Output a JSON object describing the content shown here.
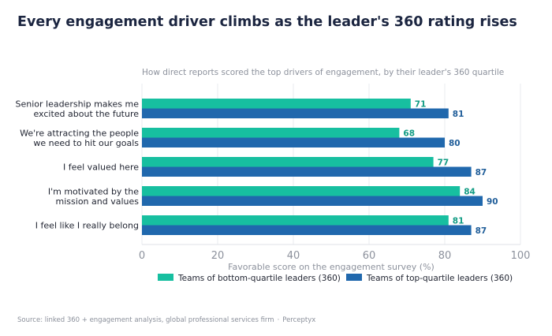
{
  "chart_data": {
    "type": "bar",
    "orientation": "horizontal",
    "title": "Every engagement driver climbs as the leader's 360 rating rises",
    "subtitle": "How direct reports scored the top drivers of engagement, by their leader's 360 quartile",
    "xlabel": "Favorable score on the engagement survey (%)",
    "ylabel": "",
    "xlim": [
      0,
      100
    ],
    "xticks": [
      0,
      20,
      40,
      60,
      80,
      100
    ],
    "grid": true,
    "legend_position": "bottom",
    "categories": [
      [
        "Senior leadership makes me",
        "excited about the future"
      ],
      [
        "We're attracting the people",
        "we need to hit our goals"
      ],
      [
        "I feel valued here"
      ],
      [
        "I'm motivated by the",
        "mission and values"
      ],
      [
        "I feel like I really belong"
      ]
    ],
    "series": [
      {
        "name": "Teams of bottom-quartile leaders (360)",
        "color": "#17bfa0",
        "label_color": "#129c84",
        "values": [
          71,
          68,
          77,
          84,
          81
        ]
      },
      {
        "name": "Teams of top-quartile leaders (360)",
        "color": "#2068ad",
        "label_color": "#1f5d99",
        "values": [
          81,
          80,
          87,
          90,
          87
        ]
      }
    ]
  },
  "source": {
    "text": "Source: linked 360 + engagement analysis, global professional services firm",
    "separator": "·",
    "brand": "Perceptyx"
  }
}
